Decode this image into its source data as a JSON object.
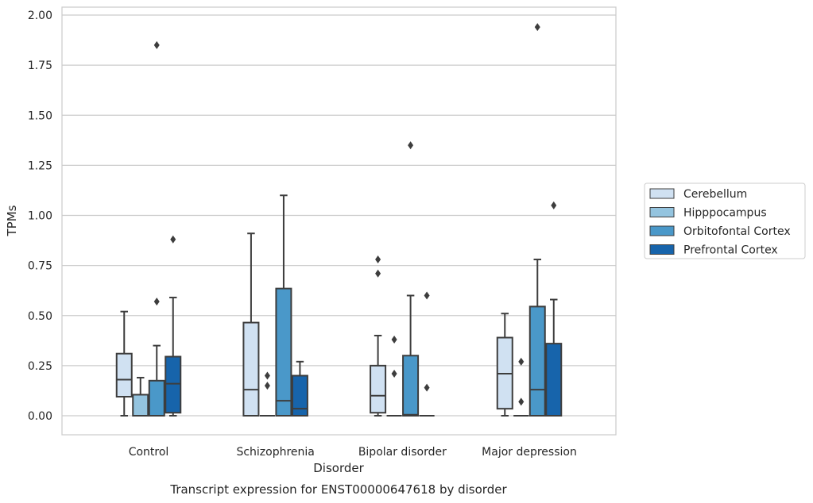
{
  "caption": "Transcript expression for ENST00000647618 by disorder",
  "colors": {
    "Cerebellum": "#d0e1f2",
    "Hipppocampus": "#94c4df",
    "Orbitofontal Cortex": "#4a98c9",
    "Prefrontal Cortex": "#1764ab",
    "box_edge": "#3d3d3d",
    "grid": "#cccccc",
    "frame": "#cccccc"
  },
  "chart_data": {
    "type": "box",
    "xlabel": "Disorder",
    "ylabel": "TPMs",
    "ylim": [
      -0.095,
      2.04
    ],
    "yticks": [
      0.0,
      0.25,
      0.5,
      0.75,
      1.0,
      1.25,
      1.5,
      1.75,
      2.0
    ],
    "ytick_labels": [
      "0.00",
      "0.25",
      "0.50",
      "0.75",
      "1.00",
      "1.25",
      "1.50",
      "1.75",
      "2.00"
    ],
    "grid": "horizontal",
    "legend_position": "right",
    "categories": [
      "Control",
      "Schizophrenia",
      "Bipolar disorder",
      "Major depression"
    ],
    "series": [
      {
        "name": "Cerebellum",
        "boxes": [
          {
            "whislo": 0.0,
            "q1": 0.095,
            "med": 0.18,
            "q3": 0.31,
            "whishi": 0.52,
            "fliers": []
          },
          {
            "whislo": 0.0,
            "q1": 0.0,
            "med": 0.13,
            "q3": 0.465,
            "whishi": 0.91,
            "fliers": []
          },
          {
            "whislo": 0.0,
            "q1": 0.015,
            "med": 0.1,
            "q3": 0.25,
            "whishi": 0.4,
            "fliers": [
              0.71,
              0.78
            ]
          },
          {
            "whislo": 0.0,
            "q1": 0.035,
            "med": 0.21,
            "q3": 0.39,
            "whishi": 0.51,
            "fliers": []
          }
        ]
      },
      {
        "name": "Hipppocampus",
        "boxes": [
          {
            "whislo": 0.0,
            "q1": 0.0,
            "med": 0.0,
            "q3": 0.105,
            "whishi": 0.19,
            "fliers": []
          },
          {
            "whislo": 0.0,
            "q1": 0.0,
            "med": 0.0,
            "q3": 0.0,
            "whishi": 0.0,
            "fliers": [
              0.15,
              0.2
            ]
          },
          {
            "whislo": 0.0,
            "q1": 0.0,
            "med": 0.0,
            "q3": 0.0,
            "whishi": 0.0,
            "fliers": [
              0.21,
              0.38
            ]
          },
          {
            "whislo": 0.0,
            "q1": 0.0,
            "med": 0.0,
            "q3": 0.0,
            "whishi": 0.0,
            "fliers": [
              0.07,
              0.27
            ]
          }
        ]
      },
      {
        "name": "Orbitofontal Cortex",
        "boxes": [
          {
            "whislo": 0.0,
            "q1": 0.0,
            "med": 0.0,
            "q3": 0.175,
            "whishi": 0.35,
            "fliers": [
              0.57,
              1.85
            ]
          },
          {
            "whislo": 0.0,
            "q1": 0.0,
            "med": 0.075,
            "q3": 0.635,
            "whishi": 1.1,
            "fliers": []
          },
          {
            "whislo": 0.0,
            "q1": 0.0,
            "med": 0.005,
            "q3": 0.3,
            "whishi": 0.6,
            "fliers": [
              1.35
            ]
          },
          {
            "whislo": 0.0,
            "q1": 0.0,
            "med": 0.13,
            "q3": 0.545,
            "whishi": 0.78,
            "fliers": [
              1.94
            ]
          }
        ]
      },
      {
        "name": "Prefrontal Cortex",
        "boxes": [
          {
            "whislo": 0.0,
            "q1": 0.015,
            "med": 0.16,
            "q3": 0.295,
            "whishi": 0.59,
            "fliers": [
              0.88
            ]
          },
          {
            "whislo": 0.0,
            "q1": 0.0,
            "med": 0.035,
            "q3": 0.2,
            "whishi": 0.27,
            "fliers": []
          },
          {
            "whislo": 0.0,
            "q1": 0.0,
            "med": 0.0,
            "q3": 0.0,
            "whishi": 0.0,
            "fliers": [
              0.14,
              0.6
            ]
          },
          {
            "whislo": 0.0,
            "q1": 0.0,
            "med": 0.0,
            "q3": 0.36,
            "whishi": 0.58,
            "fliers": [
              1.05
            ]
          }
        ]
      }
    ]
  }
}
